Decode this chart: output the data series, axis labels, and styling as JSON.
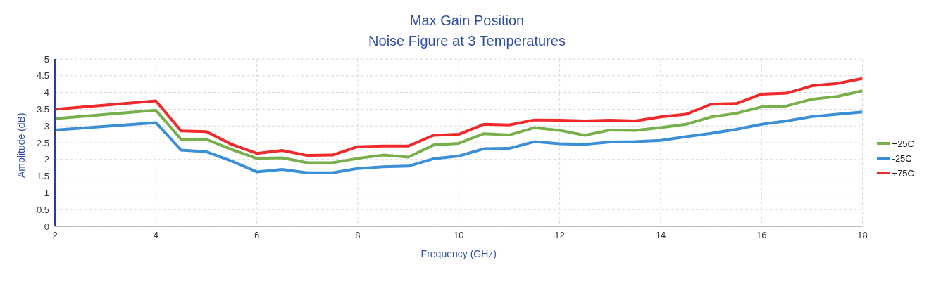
{
  "chart_data": {
    "type": "line",
    "title": "Max Gain Position",
    "subtitle": "Noise Figure at 3 Temperatures",
    "xlabel": "Frequency (GHz)",
    "ylabel": "Amplitude (dB)",
    "x": [
      2,
      4,
      4.5,
      5,
      5.5,
      6,
      6.5,
      7,
      7.5,
      8,
      8.5,
      9,
      9.5,
      10,
      10.5,
      11,
      11.5,
      12,
      12.5,
      13,
      13.5,
      14,
      14.5,
      15,
      15.5,
      16,
      16.5,
      17,
      17.5,
      18
    ],
    "series": [
      {
        "name": "+25C",
        "color": "#77b04a",
        "values": [
          3.22,
          3.47,
          2.6,
          2.6,
          2.3,
          2.03,
          2.05,
          1.9,
          1.9,
          2.03,
          2.13,
          2.07,
          2.43,
          2.48,
          2.77,
          2.73,
          2.95,
          2.87,
          2.72,
          2.88,
          2.87,
          2.95,
          3.05,
          3.27,
          3.38,
          3.57,
          3.6,
          3.8,
          3.88,
          4.05
        ]
      },
      {
        "name": "-25C",
        "color": "#3b8fd6",
        "values": [
          2.88,
          3.1,
          2.28,
          2.23,
          1.95,
          1.63,
          1.7,
          1.6,
          1.6,
          1.73,
          1.78,
          1.8,
          2.02,
          2.1,
          2.32,
          2.33,
          2.53,
          2.47,
          2.45,
          2.52,
          2.53,
          2.57,
          2.68,
          2.78,
          2.9,
          3.05,
          3.15,
          3.28,
          3.35,
          3.42
        ]
      },
      {
        "name": "+75C",
        "color": "#f02a2a",
        "values": [
          3.5,
          3.75,
          2.85,
          2.83,
          2.45,
          2.18,
          2.27,
          2.12,
          2.13,
          2.38,
          2.4,
          2.4,
          2.72,
          2.75,
          3.05,
          3.03,
          3.18,
          3.17,
          3.15,
          3.17,
          3.15,
          3.27,
          3.35,
          3.65,
          3.67,
          3.95,
          3.98,
          4.2,
          4.27,
          4.42
        ]
      }
    ],
    "xlim": [
      2,
      18
    ],
    "xticks": [
      2,
      4,
      6,
      8,
      10,
      12,
      14,
      16,
      18
    ],
    "ylim": [
      0,
      5
    ],
    "yticks": [
      0,
      0.5,
      1,
      1.5,
      2,
      2.5,
      3,
      3.5,
      4,
      4.5,
      5
    ],
    "grid": true,
    "legend": "right",
    "marker": "none",
    "line_style": "solid"
  }
}
